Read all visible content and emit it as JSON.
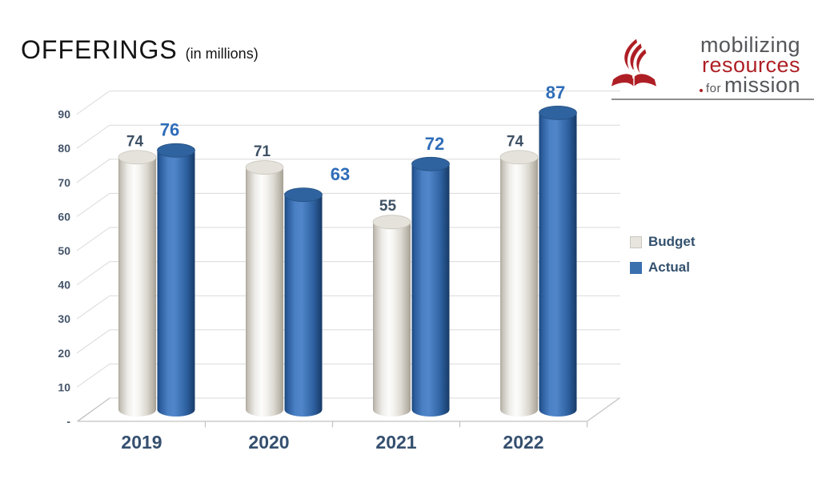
{
  "title": {
    "text": "OFFERINGS",
    "subtitle": "(in millions)"
  },
  "logo": {
    "line1": "mobilizing",
    "line2": "resources",
    "line3_prefix": "for",
    "line3": "mission",
    "accent_color": "#ae1f25",
    "gray_color": "#55565a"
  },
  "legend": {
    "items": [
      {
        "label": "Budget",
        "color": "#e7e5de",
        "border": "#c9c6bd"
      },
      {
        "label": "Actual",
        "color": "#3b70af",
        "border": "#3b70af"
      }
    ]
  },
  "chart_data": {
    "type": "bar",
    "subtype": "3d-cylinder",
    "title": "OFFERINGS",
    "subtitle": "(in millions)",
    "categories": [
      "2019",
      "2020",
      "2021",
      "2022"
    ],
    "series": [
      {
        "name": "Budget",
        "values": [
          74,
          71,
          55,
          74
        ],
        "label_color": "#3e5166",
        "top_color": "#e4e2db",
        "top_stroke": "#c8c5bb",
        "gradient": [
          [
            0,
            "#aca79c"
          ],
          [
            0.06,
            "#c6c2b9"
          ],
          [
            0.25,
            "#eeede9"
          ],
          [
            0.42,
            "#fcfcfb"
          ],
          [
            0.55,
            "#f4f3ef"
          ],
          [
            0.75,
            "#dcd9d1"
          ],
          [
            0.92,
            "#b9b4a9"
          ],
          [
            1,
            "#a49e92"
          ]
        ]
      },
      {
        "name": "Actual",
        "values": [
          76,
          63,
          72,
          87
        ],
        "label_color": "#2e6db8",
        "top_color": "#2f639f",
        "top_stroke": "#24507f",
        "gradient": [
          [
            0,
            "#1c4679"
          ],
          [
            0.07,
            "#2a5b9b"
          ],
          [
            0.28,
            "#4a80c4"
          ],
          [
            0.45,
            "#5286ca"
          ],
          [
            0.6,
            "#4076b8"
          ],
          [
            0.78,
            "#2d5f9e"
          ],
          [
            0.93,
            "#1e4678"
          ],
          [
            1,
            "#173a66"
          ]
        ]
      }
    ],
    "y_ticks": [
      0,
      10,
      20,
      30,
      40,
      50,
      60,
      70,
      80,
      90
    ],
    "y_tick_labels": [
      "-",
      "10",
      "20",
      "30",
      "40",
      "50",
      "60",
      "70",
      "80",
      "90"
    ],
    "ylim": [
      0,
      90
    ],
    "grid": true,
    "legend_position": "right",
    "axis_text_color": "#44546a",
    "category_text_color": "#35506f",
    "gridline_color": "#dadada",
    "axis_line_color": "#c3c2c0",
    "label_dx": {
      "Budget": [
        -3,
        -3,
        -5,
        -5
      ],
      "Actual": [
        -8,
        46,
        5,
        -3
      ]
    }
  }
}
